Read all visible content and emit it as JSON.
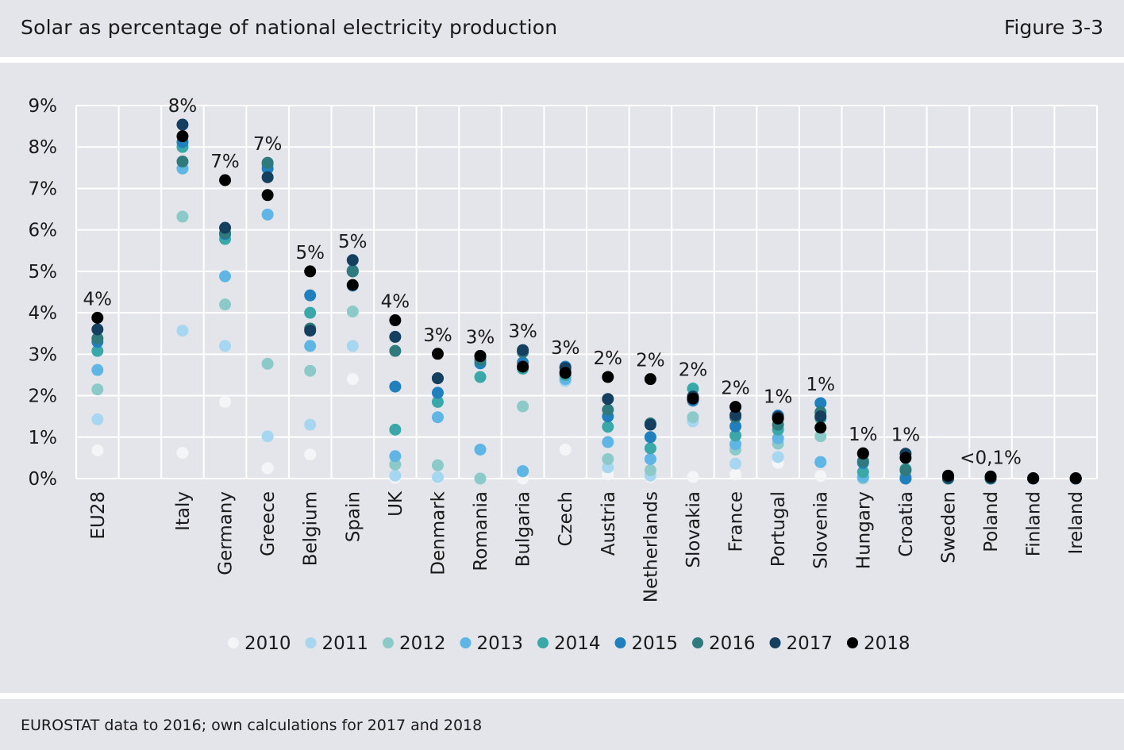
{
  "header": {
    "title": "Solar as percentage of national electricity production",
    "figure_label": "Figure 3-3"
  },
  "footer": {
    "source": "EUROSTAT data to 2016; own calculations for 2017 and 2018"
  },
  "chart_data": {
    "type": "scatter",
    "title": "Solar as percentage of national electricity production",
    "xlabel": "",
    "ylabel": "",
    "ylim": [
      0,
      9
    ],
    "y_ticks": [
      "0%",
      "1%",
      "2%",
      "3%",
      "4%",
      "5%",
      "6%",
      "7%",
      "8%",
      "9%"
    ],
    "grid": true,
    "legend_position": "bottom",
    "categories": [
      "EU28",
      "Italy",
      "Germany",
      "Greece",
      "Belgium",
      "Spain",
      "UK",
      "Denmark",
      "Romania",
      "Bulgaria",
      "Czech",
      "Austria",
      "Netherlands",
      "Slovakia",
      "France",
      "Portugal",
      "Slovenia",
      "Hungary",
      "Croatia",
      "Sweden",
      "Poland",
      "Finland",
      "Ireland"
    ],
    "category_slots": [
      0,
      2,
      3,
      4,
      5,
      6,
      7,
      8,
      9,
      10,
      11,
      12,
      13,
      14,
      15,
      16,
      17,
      18,
      19,
      20,
      21,
      22,
      23
    ],
    "annotations": [
      "4%",
      "8%",
      "7%",
      "7%",
      "5%",
      "5%",
      "4%",
      "3%",
      "3%",
      "3%",
      "3%",
      "2%",
      "2%",
      "2%",
      "2%",
      "1%",
      "1%",
      "1%",
      "1%",
      "",
      "<0,1%",
      "",
      ""
    ],
    "series": [
      {
        "name": "2010",
        "color": "#f4f5f7",
        "values": [
          0.68,
          0.62,
          1.85,
          0.25,
          0.58,
          2.4,
          0.02,
          0.01,
          0.0,
          0.0,
          0.7,
          0.1,
          0.04,
          0.04,
          0.1,
          0.38,
          0.06,
          0.0,
          0.0,
          0.0,
          0.0,
          0.0,
          0.0
        ]
      },
      {
        "name": "2011",
        "color": "#a6d6f0",
        "values": [
          1.43,
          3.57,
          3.2,
          1.02,
          1.3,
          3.2,
          0.07,
          0.03,
          0.0,
          0.17,
          2.35,
          0.27,
          0.07,
          1.38,
          0.36,
          0.52,
          0.39,
          0.0,
          0.0,
          0.0,
          0.0,
          0.0,
          0.0
        ]
      },
      {
        "name": "2012",
        "color": "#8ccac9",
        "values": [
          2.15,
          6.32,
          4.2,
          2.77,
          2.6,
          4.03,
          0.34,
          0.32,
          0.0,
          1.74,
          2.45,
          0.47,
          0.2,
          1.48,
          0.7,
          0.84,
          1.02,
          0.01,
          0.0,
          0.0,
          0.0,
          0.0,
          0.0
        ]
      },
      {
        "name": "2013",
        "color": "#5fb5e3",
        "values": [
          2.62,
          7.48,
          4.88,
          6.37,
          3.2,
          4.65,
          0.54,
          1.48,
          0.7,
          0.18,
          2.4,
          0.88,
          0.47,
          1.9,
          0.83,
          0.97,
          0.4,
          0.04,
          0.05,
          0.0,
          0.0,
          0.0,
          0.0
        ]
      },
      {
        "name": "2014",
        "color": "#3aa8a8",
        "values": [
          3.08,
          8.0,
          5.78,
          7.58,
          4.0,
          5.0,
          1.18,
          1.85,
          2.45,
          2.65,
          2.5,
          1.25,
          0.73,
          2.17,
          1.04,
          1.18,
          1.45,
          0.16,
          0.23,
          0.0,
          0.0,
          0.0,
          0.0
        ]
      },
      {
        "name": "2015",
        "color": "#1f80bd",
        "values": [
          3.3,
          8.12,
          5.9,
          7.48,
          4.42,
          5.02,
          2.22,
          2.07,
          2.78,
          2.8,
          2.7,
          1.5,
          1.0,
          1.88,
          1.26,
          1.52,
          1.82,
          0.38,
          0.0,
          0.0,
          0.0,
          0.0,
          0.0
        ]
      },
      {
        "name": "2016",
        "color": "#2f7a7c",
        "values": [
          3.38,
          7.65,
          5.92,
          7.62,
          3.62,
          5.0,
          3.08,
          2.42,
          2.86,
          3.05,
          2.57,
          1.66,
          1.33,
          1.94,
          1.48,
          1.3,
          1.6,
          0.42,
          0.2,
          0.0,
          0.0,
          0.0,
          0.0
        ]
      },
      {
        "name": "2017",
        "color": "#143f5e",
        "values": [
          3.6,
          8.54,
          6.05,
          7.27,
          3.57,
          5.27,
          3.42,
          2.42,
          2.95,
          3.1,
          2.67,
          1.92,
          1.3,
          1.98,
          1.53,
          1.49,
          1.5,
          0.6,
          0.6,
          0.02,
          0.02,
          0.0,
          0.0
        ]
      },
      {
        "name": "2018",
        "color": "#000000",
        "values": [
          3.88,
          8.26,
          7.2,
          6.84,
          5.0,
          4.67,
          3.82,
          3.01,
          2.96,
          2.7,
          2.55,
          2.45,
          2.4,
          1.93,
          1.73,
          1.45,
          1.23,
          0.61,
          0.5,
          0.07,
          0.05,
          0.01,
          0.01
        ]
      }
    ]
  }
}
